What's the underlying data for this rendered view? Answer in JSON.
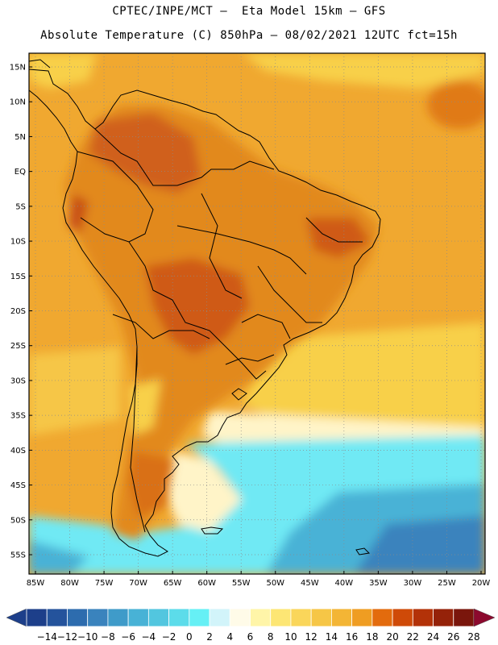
{
  "header": {
    "line1": "CPTEC/INPE/MCT –  Eta Model 15km – GFS",
    "line2": "Absolute Temperature (C) 850hPa – 08/02/2021 12UTC fct=15h"
  },
  "map": {
    "lat_labels": [
      "15N",
      "10N",
      "5N",
      "EQ",
      "5S",
      "10S",
      "15S",
      "20S",
      "25S",
      "30S",
      "35S",
      "40S",
      "45S",
      "50S",
      "55S"
    ],
    "lat_values": [
      15,
      10,
      5,
      0,
      -5,
      -10,
      -15,
      -20,
      -25,
      -30,
      -35,
      -40,
      -45,
      -50,
      -55
    ],
    "lon_labels": [
      "85W",
      "80W",
      "75W",
      "70W",
      "65W",
      "60W",
      "55W",
      "50W",
      "45W",
      "40W",
      "35W",
      "30W",
      "25W",
      "20W"
    ],
    "lon_values": [
      -85,
      -80,
      -75,
      -70,
      -65,
      -60,
      -55,
      -50,
      -45,
      -40,
      -35,
      -30,
      -25,
      -20
    ]
  },
  "colorbar": {
    "labels": [
      "-14",
      "-12",
      "-10",
      "-8",
      "-6",
      "-4",
      "-2",
      "0",
      "2",
      "4",
      "6",
      "8",
      "10",
      "12",
      "14",
      "16",
      "18",
      "20",
      "22",
      "24",
      "26",
      "28"
    ],
    "colors": [
      "#1d3f8a",
      "#24539c",
      "#2d6cae",
      "#3a83bd",
      "#3f9bc9",
      "#48b2d6",
      "#52c6df",
      "#5cdcea",
      "#66f0f5",
      "#d2f4fa",
      "#fffbe8",
      "#fff5a8",
      "#fde674",
      "#fad65a",
      "#f6c646",
      "#f3b535",
      "#ef9d22",
      "#e36b0d",
      "#cf4a08",
      "#b33208",
      "#952209",
      "#7a160c"
    ]
  },
  "colors": {
    "warm_land": "#dd7a1c",
    "hot_core": "#cf5a14",
    "ocean_orange": "#f0a830",
    "light_yellow": "#f8d04a",
    "cream": "#fff4c8",
    "cyan": "#6fe9f4",
    "blue": "#3f9bc9"
  }
}
